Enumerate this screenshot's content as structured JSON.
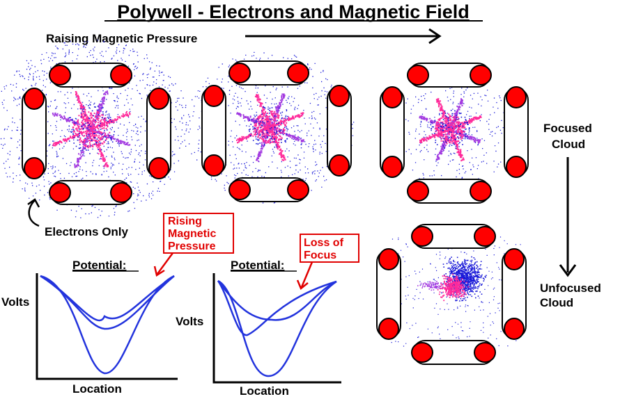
{
  "title": "Polywell - Electrons and Magnetic Field",
  "labels": {
    "raising_pressure": "Raising Magnetic Pressure",
    "electrons_only": "Electrons Only",
    "focused": [
      "Focused",
      "Cloud"
    ],
    "unfocused": [
      "Unfocused",
      "Cloud"
    ]
  },
  "plots": [
    {
      "title": "Potential:",
      "ylabel": "Volts",
      "xlabel": "Location",
      "annotation": [
        "Rising",
        "Magnetic",
        "Pressure"
      ]
    },
    {
      "title": "Potential:",
      "ylabel": "Volts",
      "xlabel": "Location",
      "annotation": [
        "Loss of",
        "Focus"
      ]
    }
  ],
  "colors": {
    "coil": "#ff0000",
    "curve": "#2233dd",
    "annotation": "#e10000",
    "electron_blue": "#1a1ad8",
    "electron_pink": "#ff2a9a"
  }
}
